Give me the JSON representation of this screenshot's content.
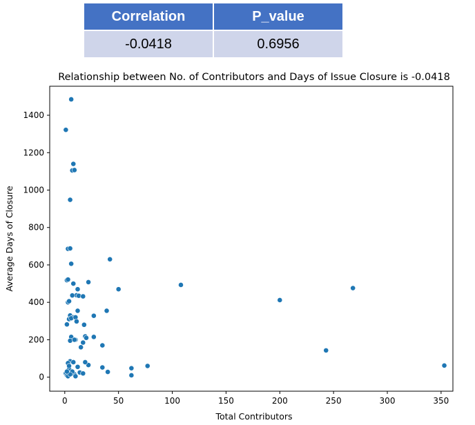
{
  "stats_table": {
    "headers": [
      "Correlation",
      "P_value"
    ],
    "values": [
      "-0.0418",
      "0.6956"
    ]
  },
  "chart_data": {
    "type": "scatter",
    "title": "Relationship between No. of Contributors and Days of Issue Closure is -0.0418",
    "xlabel": "Total Contributors",
    "ylabel": "Average Days of Closure",
    "xlim": [
      -14,
      361
    ],
    "ylim": [
      -75,
      1555
    ],
    "xticks": [
      0,
      50,
      100,
      150,
      200,
      250,
      300,
      350
    ],
    "yticks": [
      0,
      200,
      400,
      600,
      800,
      1000,
      1200,
      1400
    ],
    "grid": false,
    "point_color": "#1f77b4",
    "x": [
      6,
      1,
      8,
      7,
      9,
      5,
      3,
      5,
      6,
      42,
      2,
      3,
      12,
      22,
      8,
      50,
      108,
      268,
      11,
      3,
      13,
      17,
      7,
      4,
      200,
      39,
      12,
      5,
      8,
      4,
      6,
      10,
      11,
      27,
      2,
      18,
      6,
      10,
      19,
      17,
      5,
      27,
      20,
      35,
      9,
      15,
      243,
      353,
      77,
      62,
      62,
      35,
      40,
      22,
      19,
      12,
      5,
      8,
      3,
      1,
      2,
      4,
      6,
      9,
      14,
      7,
      3,
      5,
      10,
      17,
      2,
      4
    ],
    "y": [
      1485,
      1322,
      1140,
      1105,
      1107,
      948,
      686,
      688,
      606,
      630,
      518,
      522,
      470,
      508,
      500,
      470,
      493,
      476,
      438,
      400,
      435,
      432,
      437,
      406,
      412,
      355,
      355,
      330,
      320,
      310,
      315,
      320,
      298,
      328,
      282,
      280,
      215,
      200,
      218,
      185,
      195,
      215,
      210,
      170,
      200,
      160,
      143,
      62,
      60,
      48,
      10,
      52,
      28,
      65,
      80,
      55,
      85,
      80,
      75,
      20,
      10,
      45,
      20,
      15,
      25,
      30,
      5,
      15,
      5,
      20,
      30,
      60
    ]
  }
}
